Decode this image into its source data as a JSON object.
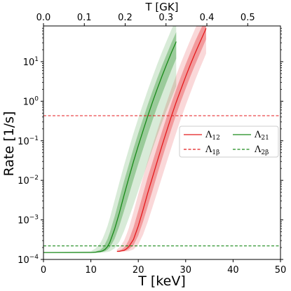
{
  "chart_data": {
    "type": "line",
    "xlabel": "T [keV]",
    "ylabel": "Rate [1/s]",
    "x2label": "T [GK]",
    "xlim": [
      0,
      50
    ],
    "x2lim": [
      0,
      0.5802
    ],
    "ylim": [
      0.0001,
      80
    ],
    "yscale": "log",
    "grid": false,
    "legend_position": "center-right",
    "x_ticks": [
      0,
      10,
      20,
      30,
      40,
      50
    ],
    "x_tick_labels": [
      "0",
      "10",
      "20",
      "30",
      "40",
      "50"
    ],
    "x2_ticks": [
      0,
      0.1,
      0.2,
      0.3,
      0.4,
      0.5
    ],
    "x2_tick_labels": [
      "0.0",
      "0.1",
      "0.2",
      "0.3",
      "0.4",
      "0.5"
    ],
    "y_ticks": [
      0.0001,
      0.001,
      0.01,
      0.1,
      1,
      10
    ],
    "y_tick_labels": [
      {
        "base": "10",
        "exp": "−4"
      },
      {
        "base": "10",
        "exp": "−3"
      },
      {
        "base": "10",
        "exp": "−2"
      },
      {
        "base": "10",
        "exp": "−1"
      },
      {
        "base": "10",
        "exp": "0"
      },
      {
        "base": "10",
        "exp": "1"
      }
    ],
    "legend": [
      {
        "key": "L12",
        "sym": "Λ",
        "sub": "12",
        "color": "#e41a1c",
        "dash": false
      },
      {
        "key": "L21",
        "sym": "Λ",
        "sub": "21",
        "color": "#1a8a1a",
        "dash": false
      },
      {
        "key": "L1b",
        "sym": "Λ",
        "sub": "1β",
        "color": "#e41a1c",
        "dash": true
      },
      {
        "key": "L2b",
        "sym": "Λ",
        "sub": "2β",
        "color": "#1a8a1a",
        "dash": true
      }
    ],
    "series": [
      {
        "key": "L12",
        "color": "#e41a1c",
        "x": [
          15.5,
          16,
          16.5,
          17,
          17.5,
          18,
          19,
          20,
          21,
          22,
          23,
          24,
          25,
          26,
          27,
          28,
          29,
          30,
          31,
          32,
          33,
          34,
          34.3
        ],
        "y": [
          0.00016,
          0.00016,
          0.000165,
          0.00017,
          0.000185,
          0.00021,
          0.00032,
          0.0007,
          0.0018,
          0.0048,
          0.012,
          0.03,
          0.075,
          0.18,
          0.42,
          0.95,
          2.0,
          4.2,
          8.5,
          16.5,
          31,
          57,
          70
        ],
        "band_inner": {
          "lower": [
            0.00016,
            0.00016,
            0.00016,
            0.000162,
            0.000168,
            0.00018,
            0.00023,
            0.0004,
            0.0009,
            0.0022,
            0.0055,
            0.014,
            0.035,
            0.085,
            0.2,
            0.46,
            1.0,
            2.1,
            4.3,
            8.4,
            16,
            30,
            37
          ],
          "upper": [
            0.000165,
            0.00017,
            0.00018,
            0.0002,
            0.00024,
            0.00031,
            0.00065,
            0.0017,
            0.0045,
            0.012,
            0.029,
            0.07,
            0.17,
            0.4,
            0.9,
            2.0,
            4.2,
            8.6,
            17,
            33,
            60,
            105,
            125
          ]
        },
        "band_outer": {
          "lower": [
            0.00016,
            0.00016,
            0.00016,
            0.00016,
            0.00016,
            0.000162,
            0.00018,
            0.00024,
            0.00042,
            0.0009,
            0.0021,
            0.005,
            0.012,
            0.029,
            0.068,
            0.16,
            0.36,
            0.78,
            1.65,
            3.4,
            6.8,
            13,
            16
          ],
          "upper": [
            0.00018,
            0.0002,
            0.00024,
            0.0003,
            0.00042,
            0.00062,
            0.0016,
            0.0045,
            0.012,
            0.031,
            0.075,
            0.18,
            0.42,
            0.95,
            2.1,
            4.5,
            9.3,
            18.5,
            36,
            68,
            125,
            220,
            260
          ]
        }
      },
      {
        "key": "L21",
        "color": "#1a8a1a",
        "x": [
          0,
          10,
          11,
          12,
          12.5,
          13,
          13.5,
          14,
          15,
          16,
          17,
          18,
          19,
          20,
          21,
          22,
          23,
          24,
          25,
          26,
          27,
          28
        ],
        "y": [
          0.00015,
          0.00015,
          0.000152,
          0.000158,
          0.000165,
          0.00018,
          0.00021,
          0.00027,
          0.00058,
          0.0015,
          0.0042,
          0.0115,
          0.03,
          0.075,
          0.18,
          0.42,
          0.95,
          2.05,
          4.3,
          8.7,
          17,
          32
        ],
        "band_inner": {
          "lower": [
            0.00015,
            0.00015,
            0.00015,
            0.000152,
            0.000156,
            0.000162,
            0.000175,
            0.0002,
            0.00033,
            0.0007,
            0.0017,
            0.0042,
            0.0105,
            0.026,
            0.062,
            0.145,
            0.33,
            0.72,
            1.5,
            3.1,
            6.2,
            12
          ],
          "upper": [
            0.00015,
            0.000152,
            0.000158,
            0.000175,
            0.0002,
            0.00025,
            0.00033,
            0.00048,
            0.0012,
            0.0034,
            0.0095,
            0.025,
            0.064,
            0.155,
            0.36,
            0.82,
            1.8,
            3.8,
            7.8,
            15.5,
            30,
            56
          ]
        },
        "band_outer": {
          "lower": [
            0.00015,
            0.00015,
            0.00015,
            0.00015,
            0.00015,
            0.000152,
            0.000155,
            0.00016,
            0.00019,
            0.00028,
            0.00052,
            0.0011,
            0.0024,
            0.0055,
            0.0125,
            0.028,
            0.062,
            0.135,
            0.29,
            0.6,
            1.2,
            2.4
          ],
          "upper": [
            0.000152,
            0.000162,
            0.00019,
            0.00026,
            0.00034,
            0.00048,
            0.0007,
            0.0011,
            0.0031,
            0.0088,
            0.024,
            0.062,
            0.155,
            0.37,
            0.85,
            1.9,
            4.1,
            8.6,
            17.5,
            34,
            65,
            120
          ]
        }
      },
      {
        "key": "L1b",
        "color": "#e41a1c",
        "dash": true,
        "x": [
          0,
          50
        ],
        "y": [
          0.43,
          0.43
        ]
      },
      {
        "key": "L2b",
        "color": "#1a8a1a",
        "dash": true,
        "x": [
          0,
          50
        ],
        "y": [
          0.00022,
          0.00022
        ]
      }
    ]
  }
}
